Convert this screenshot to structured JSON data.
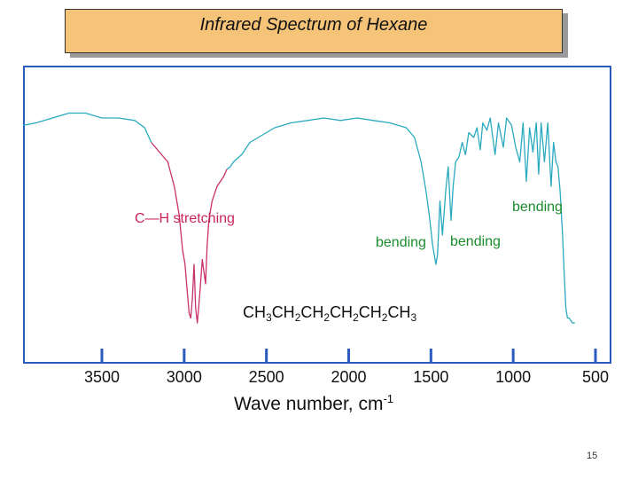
{
  "slide": {
    "title": "Infrared Spectrum of Hexane",
    "page_number": "15"
  },
  "colors": {
    "title_fill": "#f5c478",
    "frame": "#2a5bbd",
    "tick": "#2a5bbd",
    "trace_main": "#2aaabf",
    "trace_ch_stretch": "#c8306a",
    "label_green": "#1a8c2c",
    "label_pink": "#c8255c"
  },
  "annotations": {
    "ch_stretching": "C—H stretching",
    "bending_1": "bending",
    "bending_2": "bending",
    "bending_3": "bending"
  },
  "formula": {
    "parts": [
      "CH",
      "3",
      "CH",
      "2",
      "CH",
      "2",
      "CH",
      "2",
      "CH",
      "2",
      "CH",
      "3"
    ]
  },
  "chart_data": {
    "type": "line",
    "title": "Infrared Spectrum of Hexane",
    "xlabel": "Wave number, cm",
    "xlabel_superscript": "-1",
    "ylabel": "",
    "x_ticks": [
      3500,
      3000,
      2500,
      2000,
      1500,
      1000,
      500
    ],
    "x_tick_labels": [
      "3500",
      "3000",
      "2500",
      "2000",
      "1500",
      "1000",
      "500"
    ],
    "xlim": [
      4000,
      400
    ],
    "ylim": [
      0,
      100
    ],
    "grid": false,
    "series": [
      {
        "values": [
          [
            3980,
            85
          ],
          [
            3900,
            86
          ],
          [
            3800,
            88
          ],
          [
            3700,
            90
          ],
          [
            3600,
            90
          ],
          [
            3500,
            88
          ],
          [
            3400,
            88
          ],
          [
            3300,
            87
          ],
          [
            3240,
            84
          ],
          [
            3200,
            78
          ],
          [
            3150,
            74
          ],
          [
            3100,
            70
          ],
          [
            3060,
            60
          ],
          [
            3030,
            48
          ],
          [
            3010,
            34
          ],
          [
            2995,
            28
          ],
          [
            2985,
            20
          ],
          [
            2970,
            8
          ],
          [
            2960,
            6
          ],
          [
            2950,
            14
          ],
          [
            2940,
            28
          ],
          [
            2930,
            10
          ],
          [
            2920,
            4
          ],
          [
            2905,
            16
          ],
          [
            2890,
            30
          ],
          [
            2870,
            20
          ],
          [
            2860,
            36
          ],
          [
            2850,
            46
          ],
          [
            2830,
            54
          ],
          [
            2800,
            60
          ],
          [
            2780,
            62
          ],
          [
            2760,
            64
          ],
          [
            2740,
            67
          ],
          [
            2720,
            68
          ],
          [
            2700,
            70
          ],
          [
            2650,
            73
          ],
          [
            2600,
            78
          ],
          [
            2550,
            80
          ],
          [
            2450,
            84
          ],
          [
            2350,
            86
          ],
          [
            2250,
            87
          ],
          [
            2150,
            88
          ],
          [
            2050,
            87
          ],
          [
            1950,
            88
          ],
          [
            1850,
            87
          ],
          [
            1750,
            86
          ],
          [
            1650,
            84
          ],
          [
            1600,
            80
          ],
          [
            1560,
            70
          ],
          [
            1530,
            58
          ],
          [
            1510,
            48
          ],
          [
            1490,
            36
          ],
          [
            1470,
            28
          ],
          [
            1460,
            32
          ],
          [
            1445,
            54
          ],
          [
            1430,
            40
          ],
          [
            1410,
            58
          ],
          [
            1395,
            68
          ],
          [
            1378,
            46
          ],
          [
            1365,
            60
          ],
          [
            1350,
            70
          ],
          [
            1330,
            72
          ],
          [
            1310,
            78
          ],
          [
            1290,
            73
          ],
          [
            1270,
            82
          ],
          [
            1240,
            80
          ],
          [
            1220,
            84
          ],
          [
            1200,
            75
          ],
          [
            1185,
            86
          ],
          [
            1160,
            83
          ],
          [
            1140,
            88
          ],
          [
            1110,
            73
          ],
          [
            1090,
            86
          ],
          [
            1060,
            76
          ],
          [
            1040,
            88
          ],
          [
            1010,
            85
          ],
          [
            985,
            76
          ],
          [
            960,
            70
          ],
          [
            940,
            86
          ],
          [
            920,
            62
          ],
          [
            900,
            84
          ],
          [
            880,
            74
          ],
          [
            860,
            86
          ],
          [
            845,
            65
          ],
          [
            830,
            86
          ],
          [
            810,
            70
          ],
          [
            790,
            86
          ],
          [
            770,
            60
          ],
          [
            755,
            78
          ],
          [
            740,
            70
          ],
          [
            728,
            68
          ],
          [
            715,
            58
          ],
          [
            700,
            40
          ],
          [
            690,
            24
          ],
          [
            680,
            10
          ],
          [
            670,
            6
          ],
          [
            660,
            6
          ],
          [
            650,
            5
          ],
          [
            640,
            4
          ],
          [
            625,
            4
          ]
        ]
      }
    ]
  }
}
